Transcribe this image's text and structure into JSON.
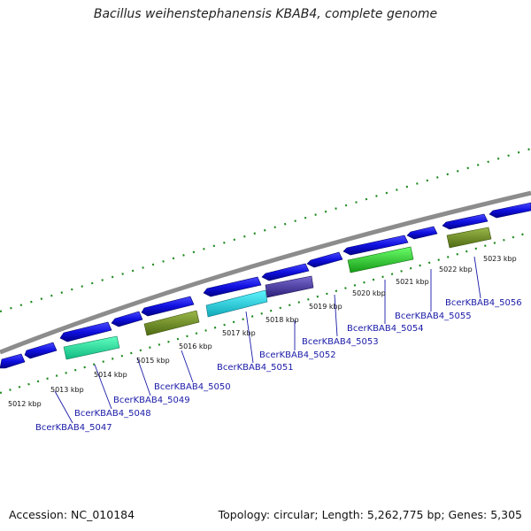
{
  "title": "Bacillus weihenstephanensis KBAB4, complete genome",
  "footer": {
    "accession": "Accession: NC_010184",
    "summary": "Topology: circular; Length: 5,262,775 bp; Genes: 5,305"
  },
  "colors": {
    "backbone": "#8c8c8c",
    "tick": "#1f8a1f",
    "cds": "#1010e0",
    "gene_label": "#1a1aa8"
  },
  "kbp_labels": [
    "5012 kbp",
    "5013 kbp",
    "5014 kbp",
    "5015 kbp",
    "5016 kbp",
    "5017 kbp",
    "5018 kbp",
    "5019 kbp",
    "5020 kbp",
    "5021 kbp",
    "5022 kbp",
    "5023 kbp"
  ],
  "gene_labels": [
    "BcerKBAB4_5047",
    "BcerKBAB4_5048",
    "BcerKBAB4_5049",
    "BcerKBAB4_5050",
    "BcerKBAB4_5051",
    "BcerKBAB4_5052",
    "BcerKBAB4_5053",
    "BcerKBAB4_5054",
    "BcerKBAB4_5055",
    "BcerKBAB4_5056"
  ]
}
